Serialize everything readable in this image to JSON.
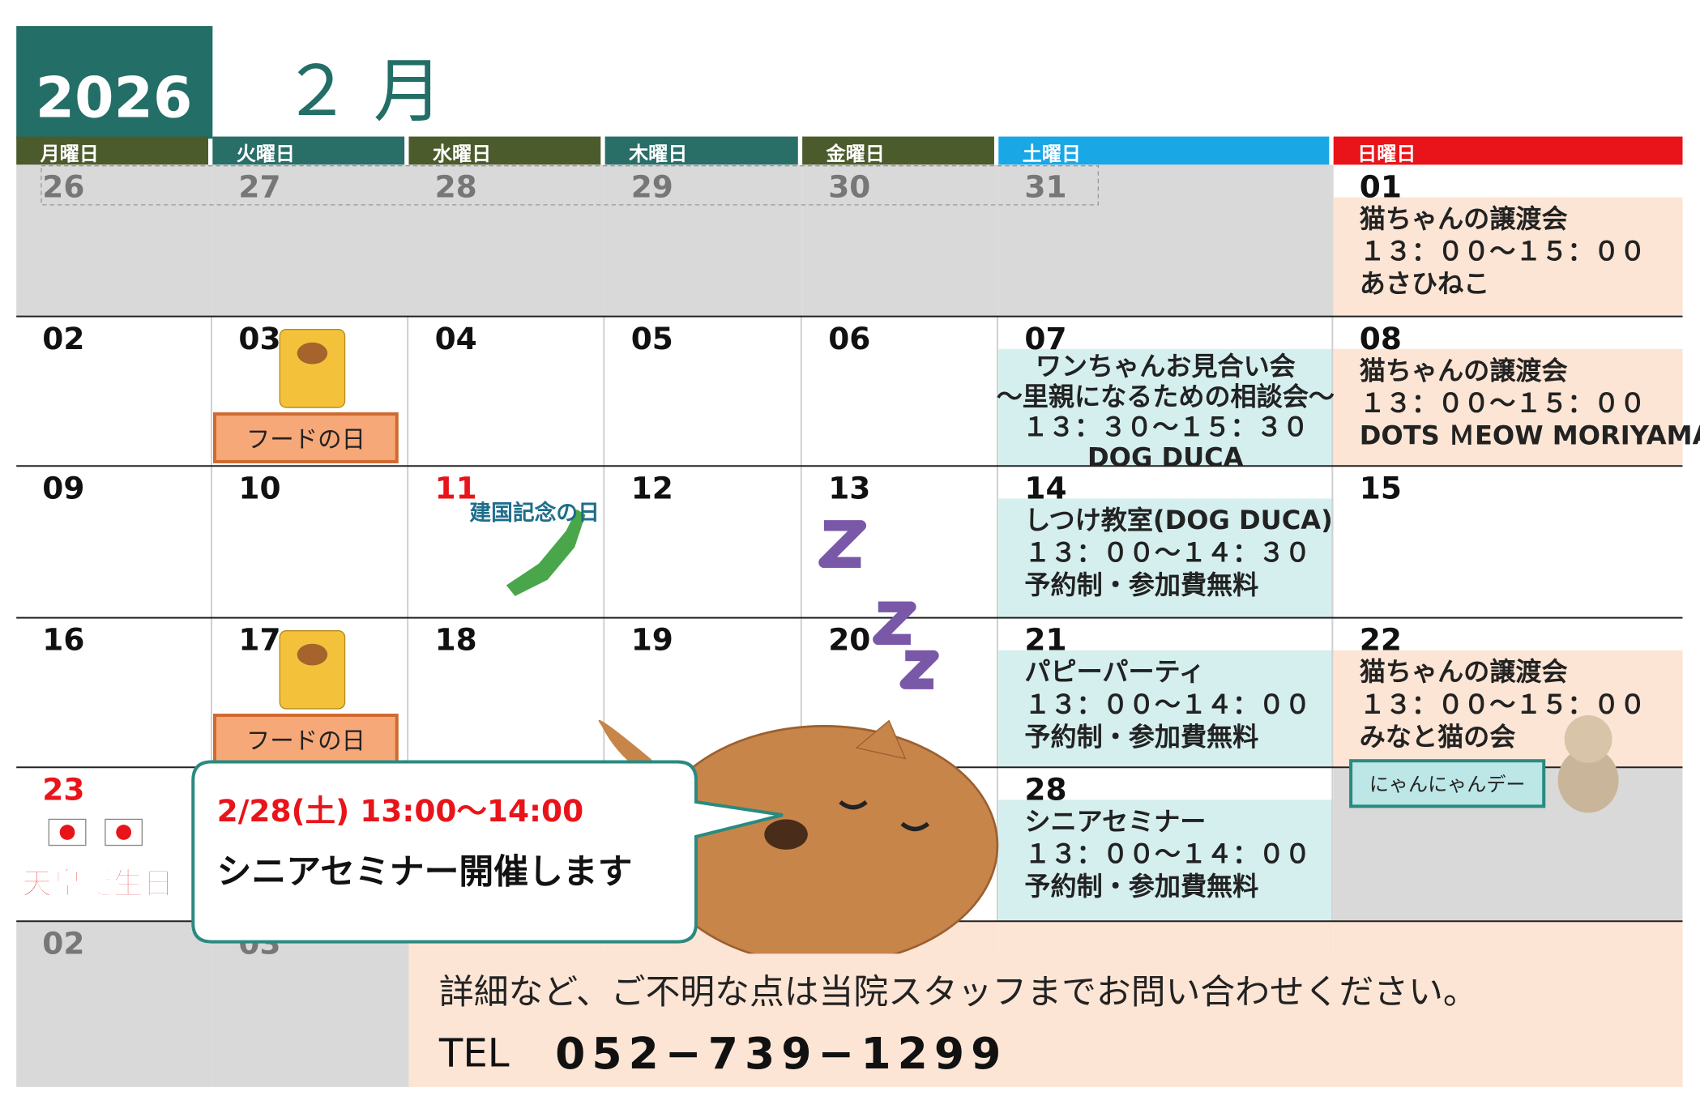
{
  "header": {
    "year": "2026",
    "month": "２ 月"
  },
  "weekdays": [
    "月曜日",
    "火曜日",
    "水曜日",
    "木曜日",
    "金曜日",
    "土曜日",
    "日曜日"
  ],
  "weeks": [
    [
      {
        "day": "26"
      },
      {
        "day": "27"
      },
      {
        "day": "28"
      },
      {
        "day": "29"
      },
      {
        "day": "30"
      },
      {
        "day": "31"
      },
      {
        "day": "01",
        "lines": [
          "猫ちゃんの譲渡会",
          "１３：００〜１５：００",
          "あさひねこ"
        ]
      }
    ],
    [
      {
        "day": "02"
      },
      {
        "day": "03",
        "label": "フードの日"
      },
      {
        "day": "04"
      },
      {
        "day": "05"
      },
      {
        "day": "06"
      },
      {
        "day": "07",
        "lines": [
          "ワンちゃんお見合い会",
          "〜里親になるための相談会〜",
          "１３：３０〜１５：３０",
          "DOG DUCA"
        ]
      },
      {
        "day": "08",
        "lines": [
          "猫ちゃんの譲渡会",
          "１３：００〜１５：００",
          "DOTS ＭEOW MORIYAMA"
        ]
      }
    ],
    [
      {
        "day": "09"
      },
      {
        "day": "10"
      },
      {
        "day": "11",
        "holiday": "建国記念の日"
      },
      {
        "day": "12"
      },
      {
        "day": "13"
      },
      {
        "day": "14",
        "lines": [
          "しつけ教室(DOG DUCA)",
          "１３：００〜１４：３０",
          "予約制・参加費無料"
        ]
      },
      {
        "day": "15"
      }
    ],
    [
      {
        "day": "16"
      },
      {
        "day": "17",
        "label": "フードの日"
      },
      {
        "day": "18"
      },
      {
        "day": "19"
      },
      {
        "day": "20"
      },
      {
        "day": "21",
        "lines": [
          "パピーパーティ",
          "１３：００〜１４：００",
          "予約制・参加費無料"
        ]
      },
      {
        "day": "22",
        "lines": [
          "猫ちゃんの譲渡会",
          "１３：００〜１５：００",
          "みなと猫の会"
        ],
        "badge": "にゃんにゃんデー"
      }
    ],
    [
      {
        "day": "23",
        "holiday": "天皇誕生日"
      },
      null,
      null,
      null,
      null,
      {
        "day": "28",
        "lines": [
          "シニアセミナー",
          "１３：００〜１４：００",
          "予約制・参加費無料"
        ]
      },
      null
    ],
    [
      {
        "day": "02"
      },
      {
        "day": "03"
      },
      null,
      null,
      null,
      null,
      null
    ]
  ],
  "callout": {
    "time": "2/28(土) 13:00〜14:00",
    "text": "シニアセミナー開催します"
  },
  "footer": {
    "note": "詳細など、ご不明な点は当院スタッフまでお問い合わせください。",
    "tel_label": "TEL",
    "tel": "052−739−1299"
  }
}
